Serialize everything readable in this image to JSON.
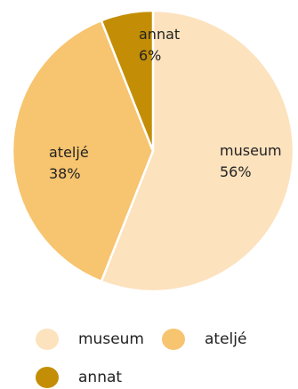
{
  "chart_data": {
    "type": "pie",
    "title": "",
    "categories": [
      "museum",
      "ateljé",
      "annat"
    ],
    "values": [
      56,
      38,
      6
    ],
    "value_labels": [
      "56%",
      "38%",
      "6%"
    ],
    "colors": [
      "#FCE2BD",
      "#F7C46F",
      "#C38E05"
    ],
    "legend": {
      "placement": "bottom",
      "entries": [
        "museum",
        "ateljé",
        "annat"
      ]
    },
    "start_angle_deg": 0,
    "direction": "clockwise"
  }
}
